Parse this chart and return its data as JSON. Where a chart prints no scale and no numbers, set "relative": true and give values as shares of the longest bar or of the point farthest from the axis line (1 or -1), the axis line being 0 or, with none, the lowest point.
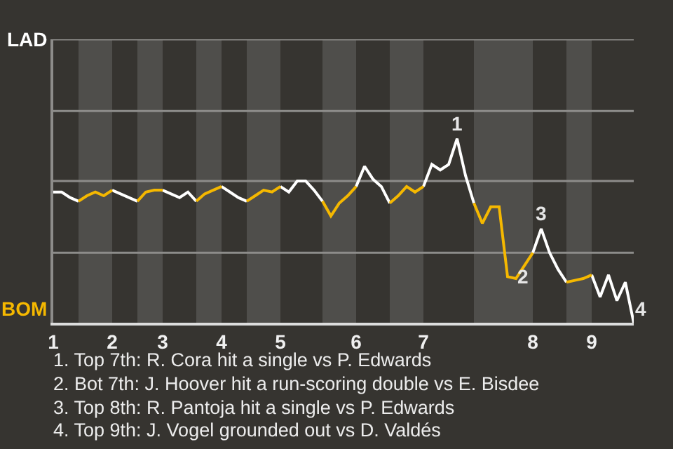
{
  "chart_data": {
    "type": "line",
    "relative": true,
    "categories": [
      "1",
      null,
      null,
      null,
      null,
      null,
      null,
      "2",
      null,
      null,
      null,
      null,
      null,
      "3",
      null,
      null,
      null,
      null,
      null,
      null,
      "4",
      null,
      null,
      null,
      null,
      null,
      null,
      "5",
      null,
      null,
      null,
      null,
      null,
      null,
      null,
      null,
      "6",
      null,
      null,
      null,
      null,
      null,
      null,
      null,
      "7",
      null,
      null,
      null,
      null,
      null,
      null,
      null,
      null,
      null,
      null,
      null,
      null,
      "8",
      null,
      null,
      null,
      null,
      null,
      null,
      "9",
      null,
      null,
      null,
      null,
      null
    ],
    "legend": "left",
    "ref_lines": [
      {
        "axis": "y",
        "value": 0.38,
        "color": "#8d8c8a"
      },
      {
        "axis": "y",
        "value": 0.77,
        "color": "#8d8c8a"
      },
      {
        "axis": "y",
        "value": 1.15,
        "color": "#8d8c8a"
      },
      {
        "axis": "y",
        "value": 1.54,
        "color": "#8d8c8a"
      }
    ],
    "marker": "none",
    "line_style": "solid",
    "series": [
      {
        "name": "LAD",
        "color": "#ffffff",
        "values": [
          0.71,
          0.71,
          0.68,
          0.66,
          null,
          null,
          null,
          0.72,
          0.7,
          0.68,
          0.66,
          null,
          null,
          0.72,
          0.7,
          0.68,
          0.71,
          0.66,
          null,
          null,
          0.74,
          0.71,
          0.68,
          0.66,
          null,
          null,
          null,
          0.74,
          0.71,
          0.77,
          0.77,
          0.72,
          0.66,
          null,
          null,
          null,
          0.74,
          0.85,
          0.78,
          0.74,
          0.65,
          null,
          null,
          null,
          0.74,
          0.86,
          0.83,
          0.86,
          1,
          0.8,
          0.65,
          null,
          null,
          null,
          null,
          null,
          null,
          0.38,
          0.51,
          0.38,
          0.29,
          0.22,
          null,
          null,
          0.26,
          0.14,
          0.26,
          0.12,
          0.22,
          0
        ]
      },
      {
        "name": "BOM",
        "color": "#f5b800",
        "values": [
          null,
          null,
          null,
          0.66,
          0.69,
          0.71,
          0.69,
          0.72,
          null,
          null,
          0.66,
          0.71,
          0.72,
          0.72,
          null,
          null,
          null,
          0.66,
          0.7,
          0.72,
          0.74,
          null,
          null,
          0.66,
          0.69,
          0.72,
          0.71,
          0.74,
          null,
          null,
          null,
          null,
          0.66,
          0.58,
          0.65,
          0.69,
          0.74,
          null,
          null,
          null,
          0.65,
          0.69,
          0.74,
          0.71,
          0.74,
          null,
          null,
          null,
          null,
          null,
          0.65,
          0.54,
          0.63,
          0.63,
          0.25,
          0.24,
          0.31,
          0.38,
          null,
          null,
          null,
          0.22,
          0.23,
          0.24,
          0.26,
          null,
          null,
          null,
          null,
          null
        ]
      }
    ],
    "annotations": [
      {
        "text": "1",
        "y": 1
      },
      {
        "text": "2",
        "y": 0.25
      },
      {
        "text": "3",
        "y": 0.51
      },
      {
        "text": "4",
        "y": 0
      },
      "1. Top 7th: R. Cora hit a single vs P. Edwards",
      "2. Bot 7th: J. Hoover hit a run-scoring double vs E. Bisdee",
      "3. Top 8th: R. Pantoja hit a single vs P. Edwards",
      "4. Top 9th: J. Vogel grounded out vs D. Valdés"
    ]
  }
}
